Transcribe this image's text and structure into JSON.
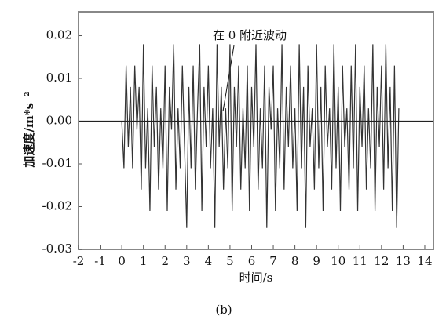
{
  "chart_data": {
    "type": "line",
    "annotation": "在 0 附近波动",
    "x_label": "时间/s",
    "y_label": "加速度/m*s⁻²",
    "caption": "(b)",
    "color": "#333333",
    "xlim": [
      -2,
      14.4
    ],
    "ylim": [
      -0.03,
      0.0256
    ],
    "xticks": [
      -2,
      -1,
      0,
      1,
      2,
      3,
      4,
      5,
      6,
      7,
      8,
      9,
      10,
      11,
      12,
      13,
      14
    ],
    "yticks": [
      0.02,
      0.01,
      {
        "value": 0,
        "label": "0.00"
      },
      -0.01,
      -0.02,
      -0.03
    ],
    "x": [
      0,
      0.1,
      0.2,
      0.3,
      0.4,
      0.5,
      0.6,
      0.7,
      0.8,
      0.9,
      1,
      1.1,
      1.2,
      1.3,
      1.4,
      1.5,
      1.6,
      1.7,
      1.8,
      1.9,
      2,
      2.1,
      2.2,
      2.3,
      2.4,
      2.5,
      2.6,
      2.7,
      2.8,
      2.9,
      3,
      3.1,
      3.2,
      3.3,
      3.4,
      3.5,
      3.6,
      3.7,
      3.8,
      3.9,
      4,
      4.1,
      4.2,
      4.3,
      4.4,
      4.5,
      4.6,
      4.7,
      4.8,
      4.9,
      5,
      5.1,
      5.2,
      5.3,
      5.4,
      5.5,
      5.6,
      5.7,
      5.8,
      5.9,
      6,
      6.1,
      6.2,
      6.3,
      6.4,
      6.5,
      6.6,
      6.7,
      6.8,
      6.9,
      7,
      7.1,
      7.2,
      7.3,
      7.4,
      7.5,
      7.6,
      7.7,
      7.8,
      7.9,
      8,
      8.1,
      8.2,
      8.3,
      8.4,
      8.5,
      8.6,
      8.7,
      8.8,
      8.9,
      9,
      9.1,
      9.2,
      9.3,
      9.4,
      9.5,
      9.6,
      9.7,
      9.8,
      9.9,
      10,
      10.1,
      10.2,
      10.3,
      10.4,
      10.5,
      10.6,
      10.7,
      10.8,
      10.9,
      11,
      11.1,
      11.2,
      11.3,
      11.4,
      11.5,
      11.6,
      11.7,
      11.8,
      11.9,
      12,
      12.1,
      12.2,
      12.3,
      12.4,
      12.5,
      12.6,
      12.7,
      12.8
    ],
    "values": [
      0,
      -0.011,
      0.013,
      -0.006,
      0.008,
      -0.011,
      0.013,
      -0.002,
      0.008,
      -0.016,
      0.018,
      -0.011,
      0.003,
      -0.021,
      0.013,
      -0.006,
      0.008,
      -0.016,
      0.003,
      -0.011,
      0.013,
      -0.021,
      0.008,
      -0.002,
      0.018,
      -0.016,
      0.003,
      -0.011,
      0.013,
      -0.006,
      -0.025,
      0.008,
      -0.011,
      0.013,
      -0.016,
      0.003,
      0.018,
      -0.021,
      0.008,
      -0.006,
      0.013,
      -0.011,
      0.003,
      -0.025,
      0.018,
      -0.006,
      0.008,
      -0.016,
      0.003,
      -0.011,
      0.018,
      -0.021,
      0.008,
      -0.006,
      0.013,
      -0.016,
      0.003,
      -0.011,
      0.013,
      -0.021,
      0.008,
      -0.006,
      0.018,
      -0.016,
      0.003,
      -0.011,
      0.013,
      -0.025,
      0.008,
      -0.002,
      0.013,
      -0.021,
      0.003,
      -0.011,
      0.018,
      -0.016,
      0.008,
      -0.006,
      0.013,
      -0.011,
      0.003,
      -0.021,
      0.018,
      -0.011,
      0.008,
      -0.025,
      0.013,
      -0.006,
      0.003,
      -0.016,
      0.018,
      -0.011,
      0.008,
      -0.021,
      0.013,
      -0.006,
      0.003,
      -0.016,
      0.018,
      -0.011,
      0.008,
      -0.021,
      0.013,
      -0.006,
      0.003,
      -0.016,
      0.013,
      -0.011,
      0.018,
      -0.021,
      0.008,
      -0.006,
      0.013,
      -0.016,
      0.003,
      -0.011,
      0.018,
      -0.021,
      0.008,
      -0.006,
      0.013,
      -0.016,
      0.018,
      -0.011,
      0.008,
      -0.021,
      0.013,
      -0.025,
      0.003
    ]
  }
}
